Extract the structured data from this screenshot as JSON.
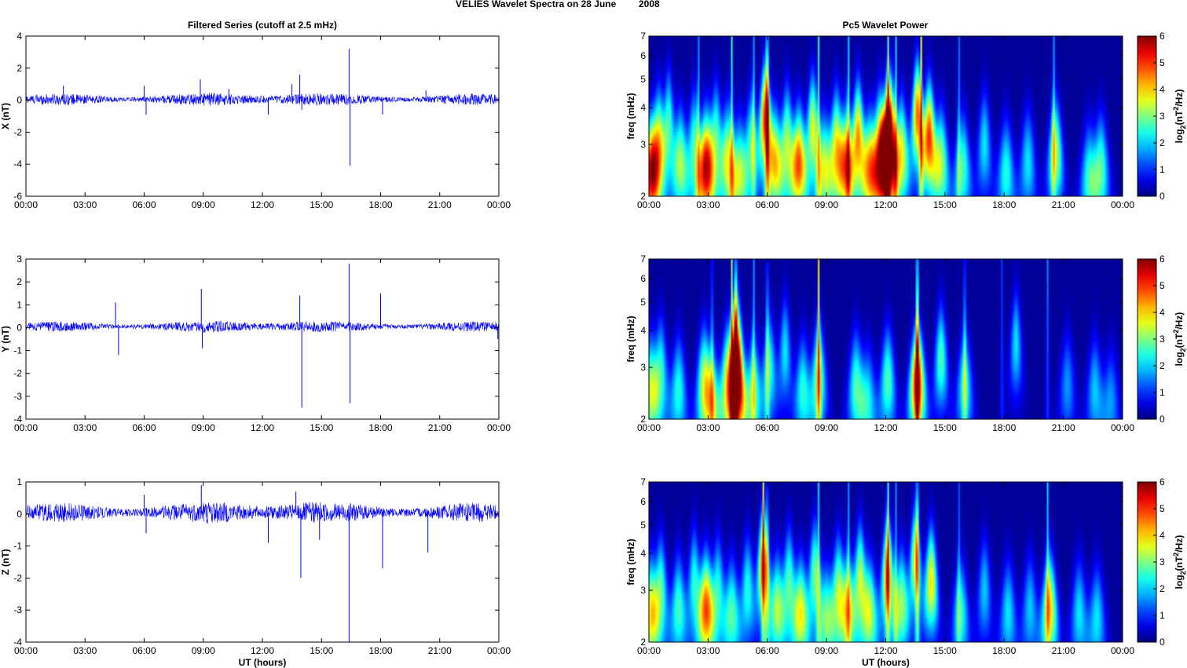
{
  "figure": {
    "title_left": "VELIES Wavelet Spectra on 28 June",
    "title_right": "2008",
    "left_title": "Filtered Series (cutoff at 2.5 mHz)",
    "right_title": "Pc5 Wavelet Power",
    "xlabel": "UT (hours)",
    "freq_label": "freq (mHz)",
    "colorbar_label": "log2(nT2/Hz)",
    "colors": {
      "trace": "#0000ff",
      "bg_low": "#00008f"
    }
  },
  "chart_data": [
    {
      "type": "line",
      "title": "Filtered Series (cutoff at 2.5 mHz)",
      "ylabel": "X (nT)",
      "xlabel": "",
      "xticks": [
        "00:00",
        "03:00",
        "06:00",
        "09:00",
        "12:00",
        "15:00",
        "18:00",
        "21:00",
        "00:00"
      ],
      "xlim_hours": [
        0,
        24
      ],
      "ylim": [
        -6,
        4
      ],
      "yticks": [
        4,
        2,
        0,
        -2,
        -4,
        -6
      ],
      "noise_amplitude": 0.35,
      "baseline": 0.05,
      "spikes": [
        {
          "t": 1.9,
          "v": 0.9
        },
        {
          "t": 6.0,
          "v": 0.9
        },
        {
          "t": 6.1,
          "v": -0.9
        },
        {
          "t": 8.85,
          "v": 1.3
        },
        {
          "t": 10.3,
          "v": 0.7
        },
        {
          "t": 12.3,
          "v": -0.9
        },
        {
          "t": 13.5,
          "v": 1.0
        },
        {
          "t": 13.9,
          "v": 1.6
        },
        {
          "t": 14.0,
          "v": -0.6
        },
        {
          "t": 16.4,
          "v": 3.2
        },
        {
          "t": 16.45,
          "v": -4.1
        },
        {
          "t": 18.1,
          "v": -0.9
        },
        {
          "t": 20.3,
          "v": 0.6
        }
      ]
    },
    {
      "type": "line",
      "title": "",
      "ylabel": "Y (nT)",
      "xlabel": "",
      "xticks": [
        "00:00",
        "03:00",
        "06:00",
        "09:00",
        "12:00",
        "15:00",
        "18:00",
        "21:00",
        "00:00"
      ],
      "xlim_hours": [
        0,
        24
      ],
      "ylim": [
        -4,
        3
      ],
      "yticks": [
        3,
        2,
        1,
        0,
        -1,
        -2,
        -3,
        -4
      ],
      "noise_amplitude": 0.22,
      "baseline": 0.05,
      "spikes": [
        {
          "t": 4.55,
          "v": 1.1
        },
        {
          "t": 4.7,
          "v": -1.2
        },
        {
          "t": 8.9,
          "v": 1.7
        },
        {
          "t": 8.95,
          "v": -0.9
        },
        {
          "t": 13.9,
          "v": 1.4
        },
        {
          "t": 14.0,
          "v": -3.5
        },
        {
          "t": 16.4,
          "v": 2.8
        },
        {
          "t": 16.45,
          "v": -3.3
        },
        {
          "t": 18.0,
          "v": 1.5
        },
        {
          "t": 23.95,
          "v": -0.5
        }
      ]
    },
    {
      "type": "line",
      "title": "",
      "ylabel": "Z (nT)",
      "xlabel": "UT (hours)",
      "xticks": [
        "00:00",
        "03:00",
        "06:00",
        "09:00",
        "12:00",
        "15:00",
        "18:00",
        "21:00",
        "00:00"
      ],
      "xlim_hours": [
        0,
        24
      ],
      "ylim": [
        -4,
        1
      ],
      "yticks": [
        1,
        0,
        -1,
        -2,
        -3,
        -4
      ],
      "noise_amplitude": 0.3,
      "baseline": 0.05,
      "spikes": [
        {
          "t": 6.0,
          "v": 0.6
        },
        {
          "t": 6.1,
          "v": -0.6
        },
        {
          "t": 8.9,
          "v": 0.9
        },
        {
          "t": 12.3,
          "v": -0.9
        },
        {
          "t": 13.7,
          "v": 0.7
        },
        {
          "t": 13.95,
          "v": -2.0
        },
        {
          "t": 14.9,
          "v": -0.8
        },
        {
          "t": 16.4,
          "v": -4.0
        },
        {
          "t": 18.1,
          "v": -1.7
        },
        {
          "t": 20.4,
          "v": -1.2
        }
      ]
    },
    {
      "type": "heatmap",
      "title": "Pc5 Wavelet Power",
      "ylabel": "freq (mHz)",
      "xlabel": "",
      "xticks": [
        "00:00",
        "03:00",
        "06:00",
        "09:00",
        "12:00",
        "15:00",
        "18:00",
        "21:00",
        "00:00"
      ],
      "xlim_hours": [
        0,
        24
      ],
      "ylim_mhz": [
        2,
        7
      ],
      "yticks": [
        7,
        6,
        5,
        4,
        3,
        2
      ],
      "colorbar_range": [
        0,
        6
      ],
      "colorbar_ticks": [
        6,
        5,
        4,
        3,
        2,
        1,
        0
      ],
      "blobs": [
        {
          "t": 0.1,
          "f": 2.4,
          "p": 4.8
        },
        {
          "t": 0.5,
          "f": 3.0,
          "p": 3.5
        },
        {
          "t": 1.0,
          "f": 3.5,
          "p": 2.5
        },
        {
          "t": 1.6,
          "f": 2.6,
          "p": 3.0
        },
        {
          "t": 2.3,
          "f": 3.0,
          "p": 2.5
        },
        {
          "t": 2.9,
          "f": 2.5,
          "p": 5.2
        },
        {
          "t": 3.4,
          "f": 3.2,
          "p": 2.5
        },
        {
          "t": 4.0,
          "f": 2.7,
          "p": 3.2
        },
        {
          "t": 4.6,
          "f": 2.4,
          "p": 2.8
        },
        {
          "t": 5.2,
          "f": 3.0,
          "p": 2.5
        },
        {
          "t": 5.9,
          "f": 3.7,
          "p": 5.0
        },
        {
          "t": 6.4,
          "f": 2.6,
          "p": 3.5
        },
        {
          "t": 7.0,
          "f": 3.1,
          "p": 3.0
        },
        {
          "t": 7.6,
          "f": 2.6,
          "p": 4.5
        },
        {
          "t": 8.3,
          "f": 3.4,
          "p": 3.5
        },
        {
          "t": 8.9,
          "f": 2.5,
          "p": 3.0
        },
        {
          "t": 9.5,
          "f": 3.0,
          "p": 3.5
        },
        {
          "t": 10.0,
          "f": 2.6,
          "p": 4.0
        },
        {
          "t": 10.6,
          "f": 3.2,
          "p": 4.2
        },
        {
          "t": 11.2,
          "f": 2.5,
          "p": 3.8
        },
        {
          "t": 11.7,
          "f": 3.0,
          "p": 3.5
        },
        {
          "t": 12.2,
          "f": 3.4,
          "p": 5.2
        },
        {
          "t": 12.0,
          "f": 2.6,
          "p": 4.5
        },
        {
          "t": 12.8,
          "f": 2.8,
          "p": 3.5
        },
        {
          "t": 13.6,
          "f": 3.8,
          "p": 4.5
        },
        {
          "t": 14.2,
          "f": 3.2,
          "p": 4.8
        },
        {
          "t": 14.8,
          "f": 2.6,
          "p": 3.0
        },
        {
          "t": 15.9,
          "f": 2.5,
          "p": 2.5
        },
        {
          "t": 17.0,
          "f": 3.0,
          "p": 2.0
        },
        {
          "t": 18.1,
          "f": 2.4,
          "p": 2.3
        },
        {
          "t": 19.2,
          "f": 2.6,
          "p": 2.0
        },
        {
          "t": 20.6,
          "f": 2.8,
          "p": 3.2
        },
        {
          "t": 22.3,
          "f": 2.3,
          "p": 2.3
        },
        {
          "t": 22.9,
          "f": 2.5,
          "p": 2.5
        }
      ],
      "streaks": [
        {
          "t": 2.5,
          "p": 2.0
        },
        {
          "t": 4.2,
          "p": 2.5
        },
        {
          "t": 5.3,
          "p": 2.0
        },
        {
          "t": 6.0,
          "p": 3.5
        },
        {
          "t": 8.6,
          "p": 2.5
        },
        {
          "t": 10.1,
          "p": 2.5
        },
        {
          "t": 12.1,
          "p": 3.5
        },
        {
          "t": 12.5,
          "p": 2.5
        },
        {
          "t": 13.8,
          "p": 3.5
        },
        {
          "t": 15.7,
          "p": 1.8
        },
        {
          "t": 20.5,
          "p": 2.0
        }
      ]
    },
    {
      "type": "heatmap",
      "title": "",
      "ylabel": "freq (mHz)",
      "xlabel": "",
      "xticks": [
        "00:00",
        "03:00",
        "06:00",
        "09:00",
        "12:00",
        "15:00",
        "18:00",
        "21:00",
        "00:00"
      ],
      "xlim_hours": [
        0,
        24
      ],
      "ylim_mhz": [
        2,
        7
      ],
      "yticks": [
        7,
        6,
        5,
        4,
        3,
        2
      ],
      "colorbar_range": [
        0,
        6
      ],
      "colorbar_ticks": [
        6,
        5,
        4,
        3,
        2,
        1,
        0
      ],
      "blobs": [
        {
          "t": 0.1,
          "f": 2.5,
          "p": 3.0
        },
        {
          "t": 0.6,
          "f": 2.9,
          "p": 2.3
        },
        {
          "t": 1.5,
          "f": 2.5,
          "p": 2.3
        },
        {
          "t": 2.8,
          "f": 2.7,
          "p": 3.0
        },
        {
          "t": 3.2,
          "f": 2.3,
          "p": 2.6
        },
        {
          "t": 4.0,
          "f": 2.7,
          "p": 3.3
        },
        {
          "t": 4.5,
          "f": 2.6,
          "p": 5.2
        },
        {
          "t": 4.4,
          "f": 3.8,
          "p": 3.3
        },
        {
          "t": 5.3,
          "f": 2.5,
          "p": 2.6
        },
        {
          "t": 6.1,
          "f": 3.0,
          "p": 2.3
        },
        {
          "t": 6.9,
          "f": 3.4,
          "p": 2.0
        },
        {
          "t": 7.8,
          "f": 2.5,
          "p": 2.3
        },
        {
          "t": 8.6,
          "f": 2.8,
          "p": 3.0
        },
        {
          "t": 10.5,
          "f": 2.6,
          "p": 2.5
        },
        {
          "t": 11.1,
          "f": 2.3,
          "p": 2.0
        },
        {
          "t": 12.1,
          "f": 2.7,
          "p": 2.6
        },
        {
          "t": 13.6,
          "f": 2.7,
          "p": 5.2
        },
        {
          "t": 14.8,
          "f": 3.2,
          "p": 2.6
        },
        {
          "t": 16.0,
          "f": 2.6,
          "p": 2.3
        },
        {
          "t": 18.6,
          "f": 3.6,
          "p": 2.0
        },
        {
          "t": 21.2,
          "f": 2.6,
          "p": 1.5
        },
        {
          "t": 22.6,
          "f": 2.5,
          "p": 1.8
        },
        {
          "t": 23.4,
          "f": 2.3,
          "p": 1.5
        }
      ],
      "streaks": [
        {
          "t": 3.2,
          "p": 1.8
        },
        {
          "t": 4.2,
          "p": 3.0
        },
        {
          "t": 4.4,
          "p": 3.0
        },
        {
          "t": 5.3,
          "p": 2.0
        },
        {
          "t": 6.0,
          "p": 2.0
        },
        {
          "t": 8.6,
          "p": 3.8
        },
        {
          "t": 13.6,
          "p": 4.5
        },
        {
          "t": 16.0,
          "p": 2.0
        },
        {
          "t": 17.9,
          "p": 1.3
        },
        {
          "t": 20.2,
          "p": 1.5
        }
      ]
    },
    {
      "type": "heatmap",
      "title": "",
      "ylabel": "freq (mHz)",
      "xlabel": "UT (hours)",
      "xticks": [
        "00:00",
        "03:00",
        "06:00",
        "09:00",
        "12:00",
        "15:00",
        "18:00",
        "21:00",
        "00:00"
      ],
      "xlim_hours": [
        0,
        24
      ],
      "ylim_mhz": [
        2,
        7
      ],
      "yticks": [
        7,
        6,
        5,
        4,
        3,
        2
      ],
      "colorbar_range": [
        0,
        6
      ],
      "colorbar_ticks": [
        6,
        5,
        4,
        3,
        2,
        1,
        0
      ],
      "blobs": [
        {
          "t": 0.1,
          "f": 2.5,
          "p": 3.5
        },
        {
          "t": 0.6,
          "f": 3.0,
          "p": 2.6
        },
        {
          "t": 1.5,
          "f": 2.6,
          "p": 2.5
        },
        {
          "t": 2.3,
          "f": 3.2,
          "p": 2.3
        },
        {
          "t": 2.9,
          "f": 2.6,
          "p": 4.5
        },
        {
          "t": 3.5,
          "f": 3.0,
          "p": 2.3
        },
        {
          "t": 4.2,
          "f": 2.5,
          "p": 2.6
        },
        {
          "t": 5.0,
          "f": 3.0,
          "p": 2.3
        },
        {
          "t": 5.8,
          "f": 3.7,
          "p": 4.5
        },
        {
          "t": 6.5,
          "f": 2.6,
          "p": 3.0
        },
        {
          "t": 7.1,
          "f": 3.2,
          "p": 2.6
        },
        {
          "t": 7.7,
          "f": 2.5,
          "p": 3.5
        },
        {
          "t": 8.4,
          "f": 3.4,
          "p": 2.8
        },
        {
          "t": 9.0,
          "f": 2.4,
          "p": 2.6
        },
        {
          "t": 9.6,
          "f": 3.0,
          "p": 3.0
        },
        {
          "t": 10.1,
          "f": 2.6,
          "p": 3.0
        },
        {
          "t": 10.7,
          "f": 3.3,
          "p": 3.2
        },
        {
          "t": 11.2,
          "f": 2.5,
          "p": 3.0
        },
        {
          "t": 12.1,
          "f": 3.4,
          "p": 4.2
        },
        {
          "t": 12.8,
          "f": 2.7,
          "p": 3.0
        },
        {
          "t": 13.5,
          "f": 3.8,
          "p": 3.5
        },
        {
          "t": 14.3,
          "f": 3.2,
          "p": 3.8
        },
        {
          "t": 15.8,
          "f": 2.5,
          "p": 2.3
        },
        {
          "t": 17.0,
          "f": 3.0,
          "p": 1.8
        },
        {
          "t": 18.2,
          "f": 2.5,
          "p": 2.0
        },
        {
          "t": 19.3,
          "f": 2.6,
          "p": 1.8
        },
        {
          "t": 20.3,
          "f": 2.6,
          "p": 3.8
        },
        {
          "t": 21.8,
          "f": 2.5,
          "p": 2.0
        },
        {
          "t": 22.7,
          "f": 2.4,
          "p": 2.0
        }
      ],
      "streaks": [
        {
          "t": 5.8,
          "p": 3.2
        },
        {
          "t": 6.0,
          "p": 2.0
        },
        {
          "t": 8.6,
          "p": 2.0
        },
        {
          "t": 10.1,
          "p": 2.0
        },
        {
          "t": 12.1,
          "p": 3.0
        },
        {
          "t": 12.5,
          "p": 2.0
        },
        {
          "t": 13.6,
          "p": 3.2
        },
        {
          "t": 15.7,
          "p": 1.5
        },
        {
          "t": 20.2,
          "p": 2.0
        }
      ]
    }
  ]
}
